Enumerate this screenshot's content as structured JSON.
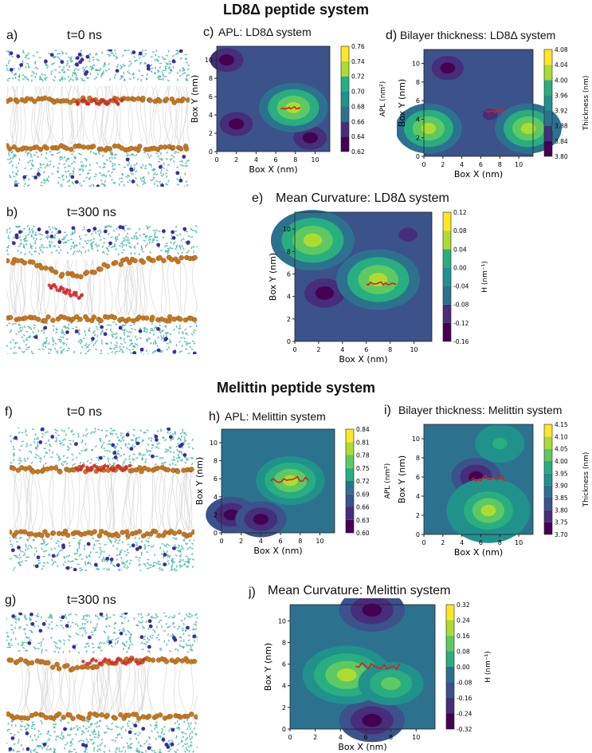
{
  "headers": {
    "ld8": "LD8Δ peptide system",
    "melittin": "Melittin peptide system"
  },
  "panels": {
    "a": {
      "label": "a)",
      "time": "t=0 ns"
    },
    "b": {
      "label": "b)",
      "time": "t=300 ns"
    },
    "f": {
      "label": "f)",
      "time": "t=0 ns"
    },
    "g": {
      "label": "g)",
      "time": "t=300 ns"
    },
    "c": {
      "label": "c)",
      "title": "APL: LD8Δ system"
    },
    "d": {
      "label": "d)",
      "title": "Bilayer thickness: LD8Δ system"
    },
    "e": {
      "label": "e)",
      "title": "Mean Curvature: LD8Δ system"
    },
    "h": {
      "label": "h)",
      "title": "APL: Melittin system"
    },
    "i": {
      "label": "i)",
      "title": "Bilayer thickness: Melittin system"
    },
    "j": {
      "label": "j)",
      "title": "Mean Curvature: Melittin system"
    }
  },
  "colors": {
    "water": "#3fb0a8",
    "lipid_tail": "#d6d6d6",
    "phosphate": "#c87820",
    "ion": "#3a2e9a",
    "peptide": "#d22a2a"
  },
  "chart_data": [
    {
      "id": "c",
      "type": "heatmap",
      "title": "APL: LD8Δ system",
      "xlabel": "Box X (nm)",
      "ylabel": "Box Y (nm)",
      "cbar_label": "APL (nm²)",
      "xlim": [
        0,
        11.5
      ],
      "ylim": [
        0,
        11.5
      ],
      "xticks": [
        "0",
        "2",
        "4",
        "6",
        "8",
        "10"
      ],
      "yticks": [
        "0",
        "2",
        "4",
        "6",
        "8",
        "10"
      ],
      "cbar_ticks": [
        "0.62",
        "0.64",
        "0.66",
        "0.68",
        "0.70",
        "0.72",
        "0.74",
        "0.76"
      ],
      "levels": 7,
      "hot_spots": [
        {
          "x": 7.8,
          "y": 4.8,
          "level": 6
        }
      ],
      "cold_spots": [
        {
          "x": 2.0,
          "y": 3.0,
          "level": 0
        },
        {
          "x": 9.5,
          "y": 1.5,
          "level": 0
        },
        {
          "x": 1.0,
          "y": 10.0,
          "level": 0
        }
      ],
      "peptide": {
        "x": [
          6.5,
          8.5
        ],
        "y": [
          4.6,
          4.9
        ]
      }
    },
    {
      "id": "d",
      "type": "heatmap",
      "title": "Bilayer thickness: LD8Δ system",
      "xlabel": "Box X (nm)",
      "ylabel": "Box Y (nm)",
      "cbar_label": "Thickness (nm)",
      "xlim": [
        0,
        11.5
      ],
      "ylim": [
        0,
        11.5
      ],
      "xticks": [
        "0",
        "2",
        "4",
        "6",
        "8",
        "10"
      ],
      "yticks": [
        "0",
        "2",
        "4",
        "6",
        "8",
        "10"
      ],
      "cbar_ticks": [
        "3.80",
        "3.84",
        "3.88",
        "3.92",
        "3.96",
        "4.00",
        "4.04",
        "4.08"
      ],
      "levels": 7,
      "hot_spots": [
        {
          "x": 0.5,
          "y": 3.0,
          "level": 6
        },
        {
          "x": 11.0,
          "y": 3.0,
          "level": 6
        }
      ],
      "cold_spots": [
        {
          "x": 2.5,
          "y": 9.5,
          "level": 0
        },
        {
          "x": 7.0,
          "y": 4.5,
          "level": 1
        }
      ],
      "peptide": {
        "x": [
          6.5,
          8.5
        ],
        "y": [
          4.7,
          5.2
        ]
      }
    },
    {
      "id": "e",
      "type": "heatmap",
      "title": "Mean Curvature: LD8Δ system",
      "xlabel": "Box X (nm)",
      "ylabel": "Box Y (nm)",
      "cbar_label": "H (nm⁻¹)",
      "xlim": [
        0,
        11.5
      ],
      "ylim": [
        0,
        11.5
      ],
      "xticks": [
        "0",
        "2",
        "4",
        "6",
        "8",
        "10"
      ],
      "yticks": [
        "0",
        "2",
        "4",
        "6",
        "8",
        "10"
      ],
      "cbar_ticks": [
        "-0.16",
        "-0.12",
        "-0.08",
        "-0.04",
        "0.00",
        "0.04",
        "0.08",
        "0.12"
      ],
      "levels": 7,
      "hot_spots": [
        {
          "x": 7.0,
          "y": 5.5,
          "level": 6
        },
        {
          "x": 1.5,
          "y": 9.0,
          "level": 6
        }
      ],
      "cold_spots": [
        {
          "x": 2.5,
          "y": 4.3,
          "level": 0
        },
        {
          "x": 9.5,
          "y": 9.5,
          "level": 1
        }
      ],
      "peptide": {
        "x": [
          6.0,
          8.5
        ],
        "y": [
          5.0,
          5.3
        ]
      }
    },
    {
      "id": "h",
      "type": "heatmap",
      "title": "APL: Melittin system",
      "xlabel": "Box X (nm)",
      "ylabel": "Box Y (nm)",
      "cbar_label": "APL (nm²)",
      "xlim": [
        0,
        11.5
      ],
      "ylim": [
        0,
        11.5
      ],
      "xticks": [
        "0",
        "2",
        "4",
        "6",
        "8",
        "10"
      ],
      "yticks": [
        "0",
        "2",
        "4",
        "6",
        "8",
        "10"
      ],
      "cbar_ticks": [
        "0.60",
        "0.63",
        "0.66",
        "0.69",
        "0.72",
        "0.75",
        "0.78",
        "0.81",
        "0.84"
      ],
      "levels": 8,
      "hot_spots": [
        {
          "x": 7.0,
          "y": 5.8,
          "level": 7
        }
      ],
      "cold_spots": [
        {
          "x": 1.0,
          "y": 2.0,
          "level": 0
        },
        {
          "x": 4.0,
          "y": 1.5,
          "level": 0
        }
      ],
      "peptide": {
        "x": [
          5.0,
          8.8
        ],
        "y": [
          5.5,
          6.3
        ]
      }
    },
    {
      "id": "i",
      "type": "heatmap",
      "title": "Bilayer thickness: Melittin system",
      "xlabel": "Box X (nm)",
      "ylabel": "Box Y (nm)",
      "cbar_label": "Thickness (nm)",
      "xlim": [
        0,
        11.5
      ],
      "ylim": [
        0,
        11.5
      ],
      "xticks": [
        "0",
        "2",
        "4",
        "6",
        "8",
        "10"
      ],
      "yticks": [
        "0",
        "2",
        "4",
        "6",
        "8",
        "10"
      ],
      "cbar_ticks": [
        "3.70",
        "3.75",
        "3.80",
        "3.85",
        "3.90",
        "3.95",
        "4.00",
        "4.05",
        "4.10",
        "4.15"
      ],
      "levels": 9,
      "hot_spots": [
        {
          "x": 6.8,
          "y": 2.5,
          "level": 8
        },
        {
          "x": 8.0,
          "y": 9.5,
          "level": 6
        }
      ],
      "cold_spots": [
        {
          "x": 5.5,
          "y": 6.0,
          "level": 0
        }
      ],
      "peptide": {
        "x": [
          5.0,
          8.5
        ],
        "y": [
          5.5,
          6.2
        ]
      }
    },
    {
      "id": "j",
      "type": "heatmap",
      "title": "Mean Curvature: Melittin system",
      "xlabel": "Box X (nm)",
      "ylabel": "Box Y (nm)",
      "cbar_label": "H (nm⁻¹)",
      "xlim": [
        0,
        11.5
      ],
      "ylim": [
        0,
        11.5
      ],
      "xticks": [
        "0",
        "2",
        "4",
        "6",
        "8",
        "10"
      ],
      "yticks": [
        "0",
        "2",
        "4",
        "6",
        "8",
        "10"
      ],
      "cbar_ticks": [
        "-0.32",
        "-0.24",
        "-0.16",
        "-0.08",
        "0.00",
        "0.08",
        "0.16",
        "0.24",
        "0.32"
      ],
      "levels": 8,
      "hot_spots": [
        {
          "x": 4.5,
          "y": 5.0,
          "level": 7
        },
        {
          "x": 8.0,
          "y": 4.2,
          "level": 6
        }
      ],
      "cold_spots": [
        {
          "x": 6.5,
          "y": 0.8,
          "level": 0
        },
        {
          "x": 6.5,
          "y": 11.0,
          "level": 0
        }
      ],
      "peptide": {
        "x": [
          5.2,
          8.7
        ],
        "y": [
          5.5,
          6.2
        ]
      }
    }
  ]
}
